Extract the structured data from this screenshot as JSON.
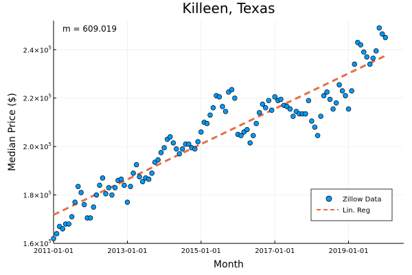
{
  "chart_data": {
    "type": "scatter",
    "title": "Killeen, Texas",
    "xlabel": "Month",
    "ylabel": "Median Price ($)",
    "annotation": "m = 609.019",
    "xlim": [
      "2011-01-01",
      "2020-07-01"
    ],
    "ylim": [
      160000,
      252000
    ],
    "x_ticks": [
      "2011-01-01",
      "2013-01-01",
      "2015-01-01",
      "2017-01-01",
      "2019-01-01"
    ],
    "y_ticks": [
      {
        "value": 160000,
        "mantissa": "1.6",
        "exp": "5"
      },
      {
        "value": 180000,
        "mantissa": "1.8",
        "exp": "5"
      },
      {
        "value": 200000,
        "mantissa": "2.0",
        "exp": "5"
      },
      {
        "value": 220000,
        "mantissa": "2.2",
        "exp": "5"
      },
      {
        "value": 240000,
        "mantissa": "2.4",
        "exp": "5"
      }
    ],
    "grid": true,
    "legend_position": "bottom-right",
    "series": [
      {
        "name": "Zillow Data",
        "kind": "scatter",
        "color": "#009AFA",
        "points": [
          [
            "2011-01-01",
            162000
          ],
          [
            "2011-02-01",
            164000
          ],
          [
            "2011-03-01",
            167000
          ],
          [
            "2011-04-01",
            166000
          ],
          [
            "2011-05-01",
            168000
          ],
          [
            "2011-06-01",
            168000
          ],
          [
            "2011-07-01",
            171000
          ],
          [
            "2011-08-01",
            177000
          ],
          [
            "2011-09-01",
            183500
          ],
          [
            "2011-10-01",
            181000
          ],
          [
            "2011-11-01",
            176000
          ],
          [
            "2011-12-01",
            170500
          ],
          [
            "2012-01-01",
            170500
          ],
          [
            "2012-02-01",
            175000
          ],
          [
            "2012-03-01",
            180000
          ],
          [
            "2012-04-01",
            184000
          ],
          [
            "2012-05-01",
            187000
          ],
          [
            "2012-06-01",
            180500
          ],
          [
            "2012-07-01",
            183000
          ],
          [
            "2012-08-01",
            180000
          ],
          [
            "2012-09-01",
            183000
          ],
          [
            "2012-10-01",
            186000
          ],
          [
            "2012-11-01",
            186500
          ],
          [
            "2012-12-01",
            184000
          ],
          [
            "2013-01-01",
            177000
          ],
          [
            "2013-02-01",
            183500
          ],
          [
            "2013-03-01",
            189000
          ],
          [
            "2013-04-01",
            192500
          ],
          [
            "2013-05-01",
            187500
          ],
          [
            "2013-06-01",
            185500
          ],
          [
            "2013-07-01",
            187000
          ],
          [
            "2013-08-01",
            186500
          ],
          [
            "2013-09-01",
            189000
          ],
          [
            "2013-10-01",
            193500
          ],
          [
            "2013-11-01",
            194500
          ],
          [
            "2013-12-01",
            197500
          ],
          [
            "2014-01-01",
            199500
          ],
          [
            "2014-02-01",
            203000
          ],
          [
            "2014-03-01",
            204000
          ],
          [
            "2014-04-01",
            201500
          ],
          [
            "2014-05-01",
            199000
          ],
          [
            "2014-06-01",
            197000
          ],
          [
            "2014-07-01",
            199000
          ],
          [
            "2014-08-01",
            201000
          ],
          [
            "2014-09-01",
            201000
          ],
          [
            "2014-10-01",
            199500
          ],
          [
            "2014-11-01",
            199000
          ],
          [
            "2014-12-01",
            202000
          ],
          [
            "2015-01-01",
            206000
          ],
          [
            "2015-02-01",
            210000
          ],
          [
            "2015-03-01",
            209500
          ],
          [
            "2015-04-01",
            213000
          ],
          [
            "2015-05-01",
            216000
          ],
          [
            "2015-06-01",
            221000
          ],
          [
            "2015-07-01",
            220500
          ],
          [
            "2015-08-01",
            216500
          ],
          [
            "2015-09-01",
            214500
          ],
          [
            "2015-10-01",
            222500
          ],
          [
            "2015-11-01",
            223500
          ],
          [
            "2015-12-01",
            220000
          ],
          [
            "2016-01-01",
            205000
          ],
          [
            "2016-02-01",
            204500
          ],
          [
            "2016-03-01",
            206000
          ],
          [
            "2016-04-01",
            207000
          ],
          [
            "2016-05-01",
            201500
          ],
          [
            "2016-06-01",
            204500
          ],
          [
            "2016-07-01",
            209500
          ],
          [
            "2016-08-01",
            214000
          ],
          [
            "2016-09-01",
            217500
          ],
          [
            "2016-10-01",
            216000
          ],
          [
            "2016-11-01",
            219000
          ],
          [
            "2016-12-01",
            215000
          ],
          [
            "2017-01-01",
            220500
          ],
          [
            "2017-02-01",
            219000
          ],
          [
            "2017-03-01",
            219500
          ],
          [
            "2017-04-01",
            217000
          ],
          [
            "2017-05-01",
            216500
          ],
          [
            "2017-06-01",
            215500
          ],
          [
            "2017-07-01",
            212500
          ],
          [
            "2017-08-01",
            214500
          ],
          [
            "2017-09-01",
            213500
          ],
          [
            "2017-10-01",
            213500
          ],
          [
            "2017-11-01",
            213500
          ],
          [
            "2017-12-01",
            219000
          ],
          [
            "2018-01-01",
            210500
          ],
          [
            "2018-02-01",
            208000
          ],
          [
            "2018-03-01",
            204500
          ],
          [
            "2018-04-01",
            212500
          ],
          [
            "2018-05-01",
            221000
          ],
          [
            "2018-06-01",
            222500
          ],
          [
            "2018-07-01",
            219500
          ],
          [
            "2018-08-01",
            215500
          ],
          [
            "2018-09-01",
            218000
          ],
          [
            "2018-10-01",
            225500
          ],
          [
            "2018-11-01",
            223000
          ],
          [
            "2018-12-01",
            221000
          ],
          [
            "2019-01-01",
            215500
          ],
          [
            "2019-02-01",
            223000
          ],
          [
            "2019-03-01",
            234000
          ],
          [
            "2019-04-01",
            243000
          ],
          [
            "2019-05-01",
            242000
          ],
          [
            "2019-06-01",
            239000
          ],
          [
            "2019-07-01",
            237000
          ],
          [
            "2019-08-01",
            234000
          ],
          [
            "2019-09-01",
            236500
          ],
          [
            "2019-10-01",
            239500
          ],
          [
            "2019-11-01",
            249000
          ],
          [
            "2019-12-01",
            246500
          ],
          [
            "2020-01-01",
            245000
          ]
        ]
      },
      {
        "name": "Lin. Reg",
        "kind": "line",
        "color": "#E26F46",
        "dashed": true,
        "points": [
          [
            "2011-01-01",
            171800
          ],
          [
            "2020-01-01",
            237500
          ]
        ]
      }
    ]
  }
}
